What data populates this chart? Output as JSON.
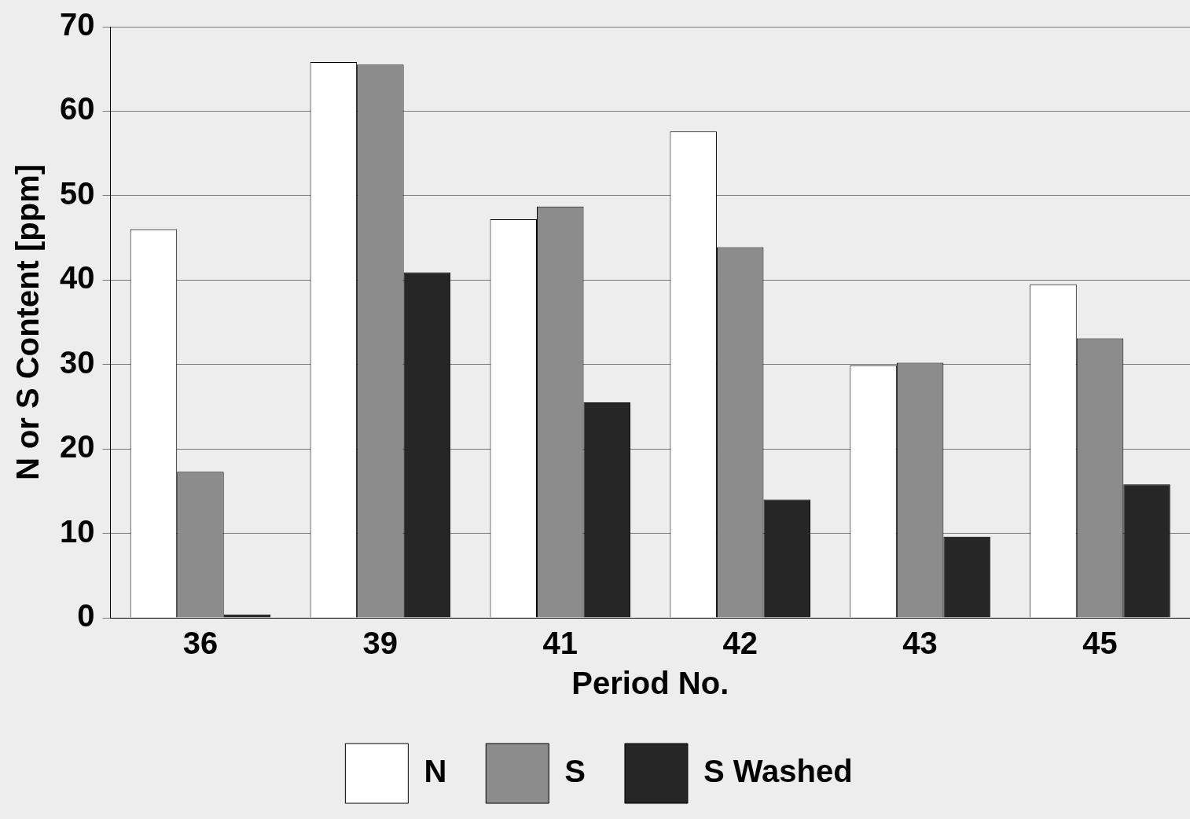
{
  "chart_data": {
    "type": "bar",
    "xlabel": "Period No.",
    "ylabel": "N or S Content [ppm]",
    "categories": [
      "36",
      "39",
      "41",
      "42",
      "43",
      "45"
    ],
    "series": [
      {
        "name": "N",
        "color": "#ffffff",
        "values": [
          46,
          65.8,
          47.2,
          57.6,
          29.9,
          39.5
        ]
      },
      {
        "name": "S",
        "color": "#8c8c8c",
        "values": [
          17.3,
          65.5,
          48.7,
          43.9,
          30.2,
          33.1
        ]
      },
      {
        "name": "S Washed",
        "color": "#262626",
        "values": [
          0.4,
          40.9,
          25.5,
          14,
          9.6,
          15.8
        ]
      }
    ],
    "ylim": [
      0,
      70
    ],
    "yticks": [
      0,
      10,
      20,
      30,
      40,
      50,
      60,
      70
    ],
    "grid": "y",
    "legend": "bottom"
  }
}
